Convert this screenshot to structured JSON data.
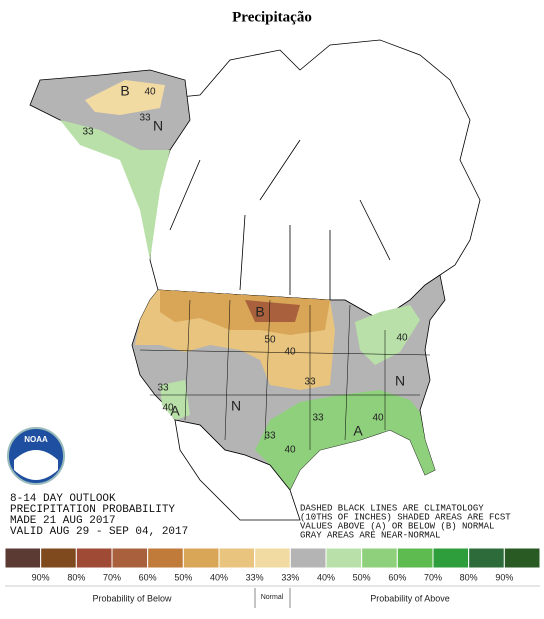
{
  "title": "Precipitação",
  "logo": "NOAA",
  "outlook": [
    "8-14 DAY OUTLOOK",
    "PRECIPITATION PROBABILITY",
    "MADE  21 AUG 2017",
    "VALID  AUG 29 - SEP 04, 2017"
  ],
  "notes": [
    "DASHED BLACK LINES ARE CLIMATOLOGY",
    "(10THS OF INCHES) SHADED AREAS ARE FCST",
    "VALUES ABOVE (A) OR BELOW (B) NORMAL",
    "GRAY AREAS ARE NEAR-NORMAL"
  ],
  "map_labels": [
    "40",
    "B",
    "N",
    "33",
    "33",
    "50",
    "B",
    "40",
    "40",
    "33",
    "33",
    "A",
    "40",
    "N",
    "33",
    "40",
    "A",
    "N",
    "40",
    "33"
  ],
  "legend": {
    "colors": [
      "#5a3a33",
      "#7f4a1e",
      "#9e4a35",
      "#a8603d",
      "#c07a3a",
      "#d9a556",
      "#e8c47e",
      "#f2daa3",
      "#b4b4b4",
      "#b8e0a8",
      "#8fd07d",
      "#5dbb4f",
      "#2e9e3c",
      "#2d6b3b",
      "#2a5a24"
    ],
    "labels": [
      "90%",
      "80%",
      "70%",
      "60%",
      "50%",
      "40%",
      "33%",
      "33%",
      "40%",
      "50%",
      "60%",
      "70%",
      "80%",
      "90%"
    ],
    "below": "Probability of Below",
    "normal": "Normal",
    "above": "Probability of Above"
  }
}
